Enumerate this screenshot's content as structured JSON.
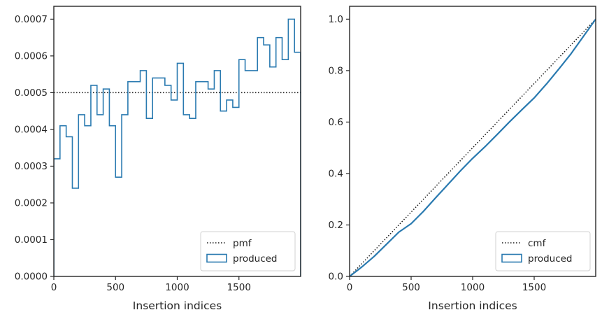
{
  "chart_data": [
    {
      "type": "step",
      "xlabel": "Insertion indices",
      "ylabel": "",
      "xlim": [
        0,
        2000
      ],
      "ylim": [
        0,
        0.000735
      ],
      "xticks": [
        0,
        500,
        1000,
        1500
      ],
      "xtick_labels": [
        "0",
        "500",
        "1000",
        "1500"
      ],
      "yticks": [
        0,
        0.0001,
        0.0002,
        0.0003,
        0.0004,
        0.0005,
        0.0006,
        0.0007
      ],
      "ytick_labels": [
        "0.0000",
        "0.0001",
        "0.0002",
        "0.0003",
        "0.0004",
        "0.0005",
        "0.0006",
        "0.0007"
      ],
      "legend_position": "lower-right",
      "series": [
        {
          "name": "pmf",
          "kind": "reference-line",
          "style": "dotted",
          "color": "#1a1a1a",
          "y": 0.0005
        },
        {
          "name": "produced",
          "kind": "histogram-step",
          "color": "#2a7ab0",
          "bin_edges": [
            0,
            50,
            100,
            150,
            200,
            250,
            300,
            350,
            400,
            450,
            500,
            550,
            600,
            650,
            700,
            750,
            800,
            850,
            900,
            950,
            1000,
            1050,
            1100,
            1150,
            1200,
            1250,
            1300,
            1350,
            1400,
            1450,
            1500,
            1550,
            1600,
            1650,
            1700,
            1750,
            1800,
            1850,
            1900,
            1950,
            2000
          ],
          "values": [
            0.00032,
            0.00041,
            0.00038,
            0.00024,
            0.00044,
            0.00041,
            0.00052,
            0.00044,
            0.00051,
            0.00041,
            0.00027,
            0.00044,
            0.00053,
            0.00053,
            0.00056,
            0.00043,
            0.00054,
            0.00054,
            0.00052,
            0.00048,
            0.00058,
            0.00044,
            0.00043,
            0.00053,
            0.00053,
            0.00051,
            0.00056,
            0.00045,
            0.00048,
            0.00046,
            0.00059,
            0.00056,
            0.00056,
            0.00065,
            0.00063,
            0.00057,
            0.00065,
            0.00059,
            0.0007,
            0.00061
          ]
        }
      ]
    },
    {
      "type": "line",
      "xlabel": "Insertion indices",
      "ylabel": "",
      "xlim": [
        0,
        2000
      ],
      "ylim": [
        0,
        1.05
      ],
      "xticks": [
        0,
        500,
        1000,
        1500
      ],
      "xtick_labels": [
        "0",
        "500",
        "1000",
        "1500"
      ],
      "yticks": [
        0,
        0.2,
        0.4,
        0.6,
        0.8,
        1.0
      ],
      "ytick_labels": [
        "0.0",
        "0.2",
        "0.4",
        "0.6",
        "0.8",
        "1.0"
      ],
      "legend_position": "lower-right",
      "series": [
        {
          "name": "cmf",
          "kind": "reference-line",
          "style": "dotted",
          "color": "#1a1a1a",
          "x": [
            0,
            2000
          ],
          "y": [
            0,
            1
          ]
        },
        {
          "name": "produced",
          "kind": "cumulative",
          "color": "#2a7ab0",
          "x": [
            0,
            100,
            200,
            300,
            400,
            500,
            600,
            700,
            800,
            900,
            1000,
            1100,
            1200,
            1300,
            1400,
            1500,
            1600,
            1700,
            1800,
            1900,
            2000
          ],
          "y": [
            0,
            0.037,
            0.078,
            0.125,
            0.172,
            0.205,
            0.253,
            0.306,
            0.358,
            0.41,
            0.459,
            0.504,
            0.552,
            0.601,
            0.648,
            0.694,
            0.748,
            0.806,
            0.866,
            0.933,
            1.0
          ]
        }
      ]
    }
  ]
}
